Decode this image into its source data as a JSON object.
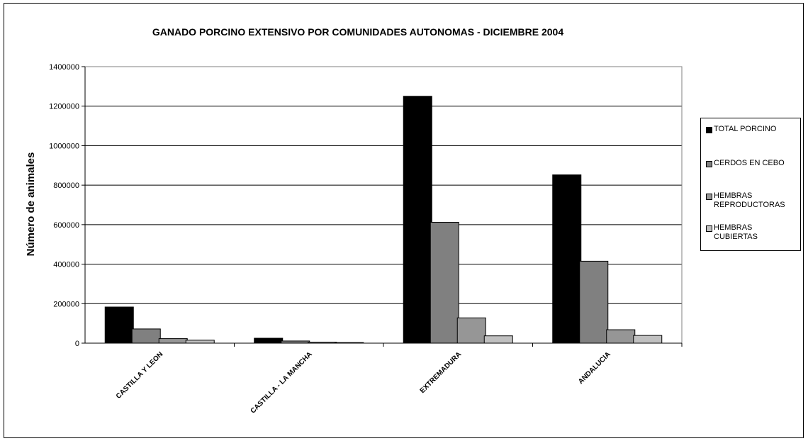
{
  "chart_data": {
    "type": "bar",
    "title": "GANADO PORCINO EXTENSIVO POR COMUNIDADES AUTONOMAS - DICIEMBRE 2004",
    "xlabel": "",
    "ylabel": "Número de animales",
    "ylim": [
      0,
      1400000
    ],
    "yticks": [
      0,
      200000,
      400000,
      600000,
      800000,
      1000000,
      1200000,
      1400000
    ],
    "ytick_labels": [
      "0",
      "200000",
      "400000",
      "600000",
      "800000",
      "1000000",
      "1200000",
      "1400000"
    ],
    "categories": [
      "CASTILLA Y LEON",
      "CASTILLA - LA MANCHA",
      "EXTREMADURA",
      "ANDALUCIA"
    ],
    "series": [
      {
        "name": "TOTAL PORCINO",
        "color": "#000000",
        "values": [
          183000,
          25000,
          1250000,
          852000
        ]
      },
      {
        "name": "CERDOS EN CEBO",
        "color": "#808080",
        "values": [
          72000,
          11000,
          612000,
          415000
        ]
      },
      {
        "name": "HEMBRAS REPRODUCTORAS",
        "color": "#969696",
        "values": [
          23000,
          5000,
          128000,
          68000
        ]
      },
      {
        "name": "HEMBRAS CUBIERTAS",
        "color": "#c0c0c0",
        "values": [
          15000,
          3000,
          37000,
          39000
        ]
      }
    ],
    "grid": true,
    "legend_position": "right"
  }
}
